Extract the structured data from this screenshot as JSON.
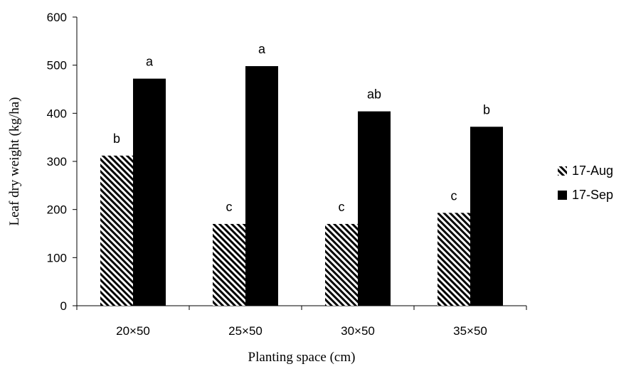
{
  "chart_data": {
    "type": "bar",
    "title": "",
    "xlabel": "Planting space (cm)",
    "ylabel": "Leaf dry weight (kg/ha)",
    "categories": [
      "20×50",
      "25×50",
      "30×50",
      "35×50"
    ],
    "ylim": [
      0,
      600
    ],
    "yticks": [
      0,
      100,
      200,
      300,
      400,
      500,
      600
    ],
    "grid": false,
    "legend_position": "right",
    "series": [
      {
        "name": "17-Aug",
        "pattern": "diagonal-hatch",
        "color": "#000000",
        "values": [
          312,
          170,
          170,
          193
        ],
        "labels": [
          "b",
          "c",
          "c",
          "c"
        ]
      },
      {
        "name": "17-Sep",
        "pattern": "solid",
        "color": "#000000",
        "values": [
          472,
          498,
          404,
          372
        ],
        "labels": [
          "a",
          "a",
          "ab",
          "b"
        ]
      }
    ]
  }
}
